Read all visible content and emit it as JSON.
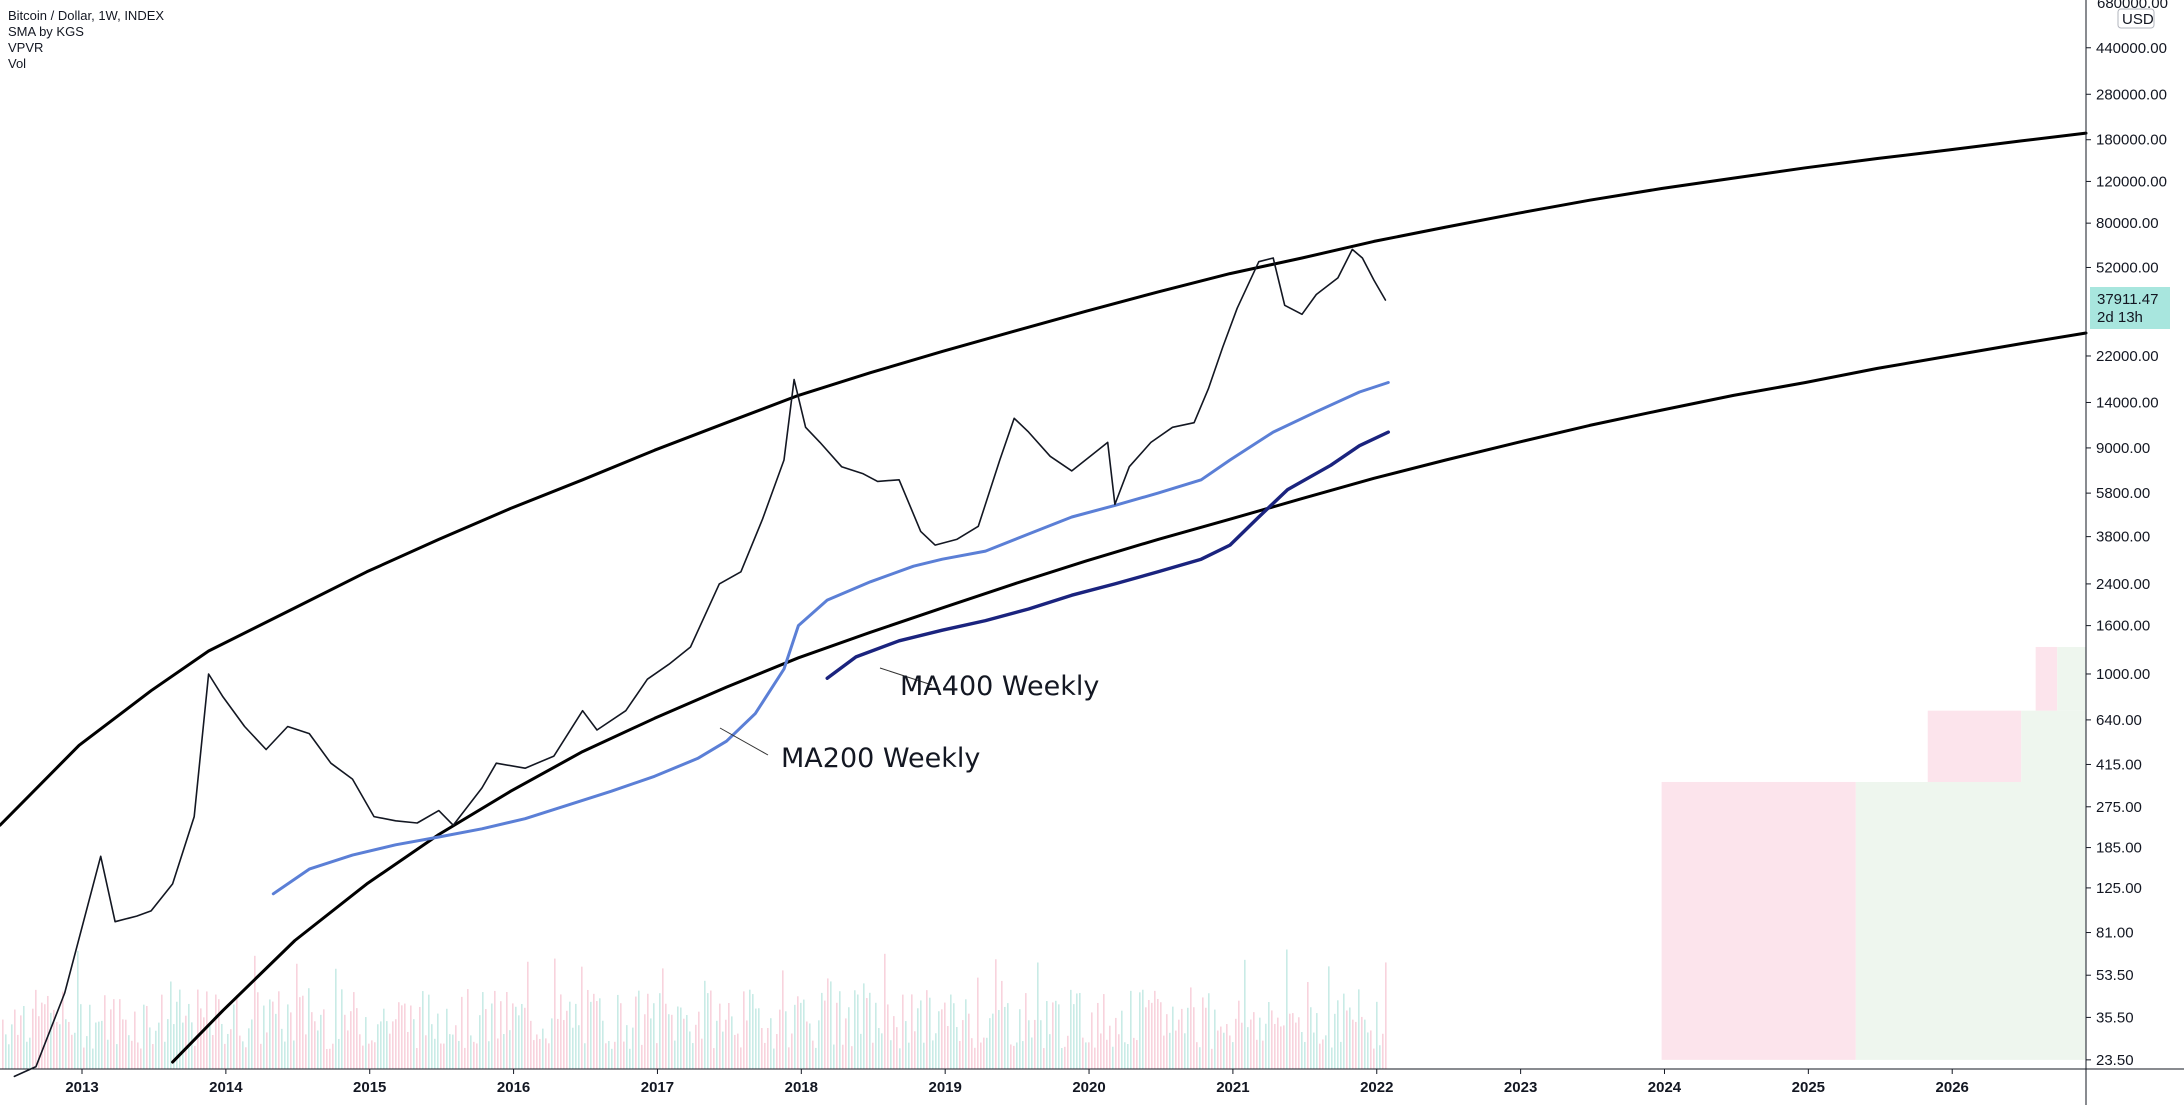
{
  "legend": {
    "symbol": "Bitcoin / Dollar, 1W, INDEX",
    "indicator_1": "SMA by KGS",
    "indicator_2": "VPVR",
    "indicator_3": "Vol"
  },
  "price_axis": {
    "currency": "USD",
    "top_clipped_label": "680000.00"
  },
  "last_price": {
    "value": "37911.47",
    "countdown": "2d 13h",
    "color": "#a8e6de"
  },
  "annotations": {
    "ma400": "MA400 Weekly",
    "ma200": "MA200 Weekly"
  },
  "chart_data": {
    "type": "line",
    "scale": "log",
    "ylim": [
      21.5,
      700000
    ],
    "xlim": [
      2012.45,
      2026.95
    ],
    "y_tick_labels": [
      "440000.00",
      "280000.00",
      "180000.00",
      "120000.00",
      "80000.00",
      "52000.00",
      "22000.00",
      "14000.00",
      "9000.00",
      "5800.00",
      "3800.00",
      "2400.00",
      "1600.00",
      "1000.00",
      "640.00",
      "415.00",
      "275.00",
      "185.00",
      "125.00",
      "81.00",
      "53.50",
      "35.50",
      "23.50"
    ],
    "x_tick_labels": [
      "2013",
      "2014",
      "2015",
      "2016",
      "2017",
      "2018",
      "2019",
      "2020",
      "2021",
      "2022",
      "2023",
      "2024",
      "2025",
      "2026"
    ],
    "x_tick_values": [
      2013,
      2014,
      2015,
      2016,
      2017,
      2018,
      2019,
      2020,
      2021,
      2022,
      2023,
      2024,
      2025,
      2026
    ],
    "series": [
      {
        "key": "upper_band",
        "color": "#000000",
        "points": [
          [
            2012.45,
            230
          ],
          [
            2013.0,
            500
          ],
          [
            2013.5,
            850
          ],
          [
            2013.9,
            1250
          ],
          [
            2014.5,
            1900
          ],
          [
            2015.0,
            2700
          ],
          [
            2015.5,
            3700
          ],
          [
            2016.0,
            5000
          ],
          [
            2016.5,
            6600
          ],
          [
            2017.0,
            8800
          ],
          [
            2017.5,
            11500
          ],
          [
            2018.0,
            15000
          ],
          [
            2018.5,
            18700
          ],
          [
            2019.0,
            23000
          ],
          [
            2019.5,
            28000
          ],
          [
            2020.0,
            34000
          ],
          [
            2020.5,
            41000
          ],
          [
            2021.0,
            49000
          ],
          [
            2021.5,
            57000
          ],
          [
            2022.0,
            67000
          ],
          [
            2022.5,
            77000
          ],
          [
            2023.0,
            88000
          ],
          [
            2023.5,
            100000
          ],
          [
            2024.0,
            112000
          ],
          [
            2024.5,
            124000
          ],
          [
            2025.0,
            137000
          ],
          [
            2025.5,
            150000
          ],
          [
            2026.0,
            163000
          ],
          [
            2026.5,
            178000
          ],
          [
            2026.95,
            192000
          ]
        ]
      },
      {
        "key": "lower_band",
        "color": "#000000",
        "points": [
          [
            2013.65,
            23
          ],
          [
            2014.0,
            38
          ],
          [
            2014.5,
            75
          ],
          [
            2015.0,
            130
          ],
          [
            2015.5,
            210
          ],
          [
            2016.0,
            320
          ],
          [
            2016.5,
            470
          ],
          [
            2017.0,
            650
          ],
          [
            2017.5,
            880
          ],
          [
            2018.0,
            1170
          ],
          [
            2018.5,
            1500
          ],
          [
            2019.0,
            1900
          ],
          [
            2019.5,
            2400
          ],
          [
            2020.0,
            3000
          ],
          [
            2020.5,
            3700
          ],
          [
            2021.0,
            4500
          ],
          [
            2021.5,
            5500
          ],
          [
            2022.0,
            6700
          ],
          [
            2022.5,
            8000
          ],
          [
            2023.0,
            9500
          ],
          [
            2023.5,
            11200
          ],
          [
            2024.0,
            13000
          ],
          [
            2024.5,
            15000
          ],
          [
            2025.0,
            17000
          ],
          [
            2025.5,
            19500
          ],
          [
            2026.0,
            22000
          ],
          [
            2026.5,
            24800
          ],
          [
            2026.95,
            27500
          ]
        ]
      },
      {
        "key": "ma200_weekly",
        "color": "#5b7fd6",
        "points": [
          [
            2014.35,
            118
          ],
          [
            2014.6,
            150
          ],
          [
            2014.9,
            172
          ],
          [
            2015.2,
            190
          ],
          [
            2015.5,
            205
          ],
          [
            2015.8,
            222
          ],
          [
            2016.1,
            245
          ],
          [
            2016.4,
            280
          ],
          [
            2016.7,
            320
          ],
          [
            2017.0,
            370
          ],
          [
            2017.3,
            440
          ],
          [
            2017.5,
            520
          ],
          [
            2017.7,
            680
          ],
          [
            2017.9,
            1050
          ],
          [
            2018.0,
            1600
          ],
          [
            2018.2,
            2050
          ],
          [
            2018.5,
            2450
          ],
          [
            2018.8,
            2850
          ],
          [
            2019.0,
            3050
          ],
          [
            2019.3,
            3300
          ],
          [
            2019.6,
            3900
          ],
          [
            2019.9,
            4600
          ],
          [
            2020.2,
            5150
          ],
          [
            2020.5,
            5800
          ],
          [
            2020.8,
            6600
          ],
          [
            2021.0,
            8000
          ],
          [
            2021.3,
            10500
          ],
          [
            2021.6,
            12800
          ],
          [
            2021.9,
            15500
          ],
          [
            2022.1,
            17000
          ]
        ]
      },
      {
        "key": "ma400_weekly",
        "color": "#1a237e",
        "points": [
          [
            2018.2,
            960
          ],
          [
            2018.4,
            1180
          ],
          [
            2018.7,
            1380
          ],
          [
            2019.0,
            1530
          ],
          [
            2019.3,
            1680
          ],
          [
            2019.6,
            1880
          ],
          [
            2019.9,
            2150
          ],
          [
            2020.2,
            2400
          ],
          [
            2020.5,
            2700
          ],
          [
            2020.8,
            3050
          ],
          [
            2021.0,
            3500
          ],
          [
            2021.2,
            4600
          ],
          [
            2021.4,
            6000
          ],
          [
            2021.7,
            7600
          ],
          [
            2021.9,
            9200
          ],
          [
            2022.1,
            10500
          ]
        ]
      },
      {
        "key": "price_weekly",
        "color": "#131722",
        "points": [
          [
            2012.55,
            20
          ],
          [
            2012.7,
            22
          ],
          [
            2012.9,
            45
          ],
          [
            2013.15,
            170
          ],
          [
            2013.25,
            90
          ],
          [
            2013.4,
            95
          ],
          [
            2013.5,
            100
          ],
          [
            2013.65,
            130
          ],
          [
            2013.8,
            250
          ],
          [
            2013.9,
            1000
          ],
          [
            2014.0,
            800
          ],
          [
            2014.15,
            600
          ],
          [
            2014.3,
            480
          ],
          [
            2014.45,
            600
          ],
          [
            2014.6,
            560
          ],
          [
            2014.75,
            420
          ],
          [
            2014.9,
            360
          ],
          [
            2015.05,
            250
          ],
          [
            2015.2,
            240
          ],
          [
            2015.35,
            235
          ],
          [
            2015.5,
            265
          ],
          [
            2015.6,
            230
          ],
          [
            2015.8,
            330
          ],
          [
            2015.9,
            420
          ],
          [
            2016.1,
            400
          ],
          [
            2016.3,
            450
          ],
          [
            2016.5,
            700
          ],
          [
            2016.6,
            580
          ],
          [
            2016.8,
            700
          ],
          [
            2016.95,
            950
          ],
          [
            2017.1,
            1100
          ],
          [
            2017.25,
            1300
          ],
          [
            2017.45,
            2400
          ],
          [
            2017.6,
            2700
          ],
          [
            2017.75,
            4500
          ],
          [
            2017.9,
            8000
          ],
          [
            2017.97,
            17500
          ],
          [
            2018.05,
            11000
          ],
          [
            2018.15,
            9500
          ],
          [
            2018.3,
            7500
          ],
          [
            2018.45,
            7000
          ],
          [
            2018.55,
            6500
          ],
          [
            2018.7,
            6600
          ],
          [
            2018.85,
            4000
          ],
          [
            2018.95,
            3500
          ],
          [
            2019.1,
            3700
          ],
          [
            2019.25,
            4200
          ],
          [
            2019.4,
            8000
          ],
          [
            2019.5,
            12000
          ],
          [
            2019.6,
            10500
          ],
          [
            2019.75,
            8300
          ],
          [
            2019.9,
            7200
          ],
          [
            2020.05,
            8500
          ],
          [
            2020.15,
            9500
          ],
          [
            2020.2,
            5200
          ],
          [
            2020.3,
            7500
          ],
          [
            2020.45,
            9500
          ],
          [
            2020.6,
            11000
          ],
          [
            2020.75,
            11500
          ],
          [
            2020.85,
            16000
          ],
          [
            2020.95,
            24000
          ],
          [
            2021.05,
            35000
          ],
          [
            2021.2,
            55000
          ],
          [
            2021.3,
            57000
          ],
          [
            2021.38,
            36000
          ],
          [
            2021.5,
            33000
          ],
          [
            2021.6,
            40000
          ],
          [
            2021.75,
            47000
          ],
          [
            2021.85,
            62000
          ],
          [
            2021.92,
            57000
          ],
          [
            2022.0,
            46000
          ],
          [
            2022.08,
            37911.47
          ]
        ]
      }
    ],
    "volume_profile_rows": [
      {
        "price_from": 23.5,
        "price_to": 350,
        "x_from": 2024.0,
        "x_to": 2026.95,
        "split_x": 2025.35
      },
      {
        "price_from": 350,
        "price_to": 700,
        "x_from": 2025.85,
        "x_to": 2026.95,
        "split_x": 2026.5
      },
      {
        "price_from": 700,
        "price_to": 1300,
        "x_from": 2026.6,
        "x_to": 2026.95,
        "split_x": 2026.75
      }
    ]
  }
}
